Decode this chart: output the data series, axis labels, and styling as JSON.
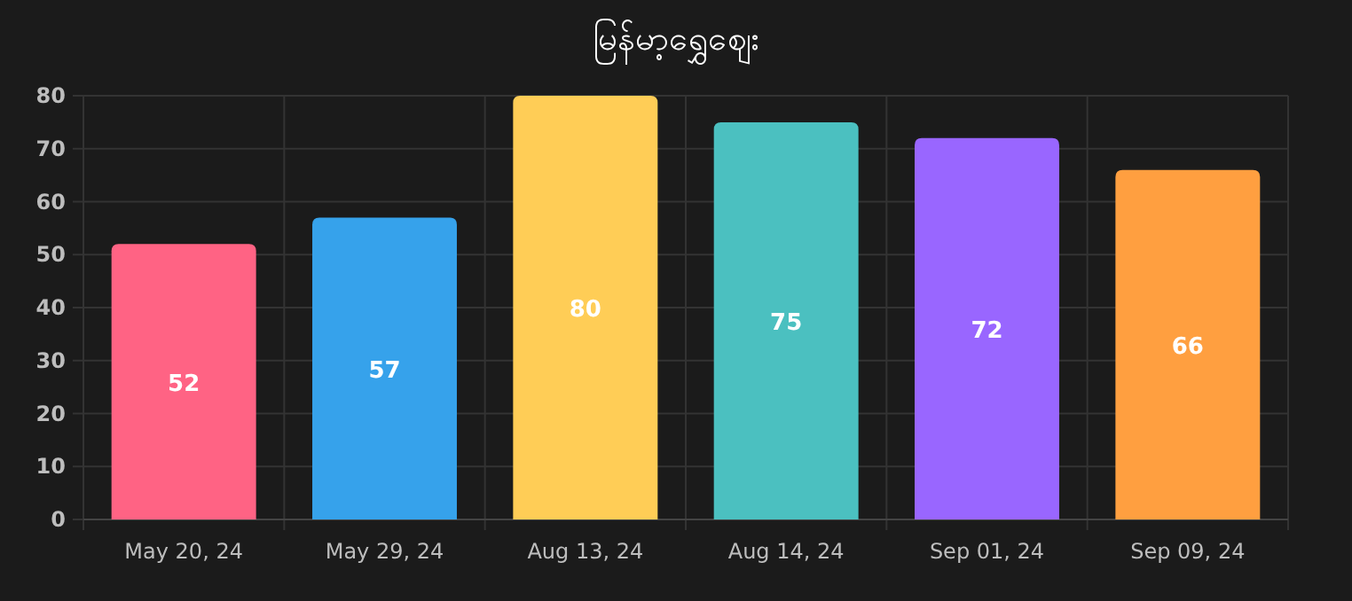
{
  "chart_data": {
    "type": "bar",
    "title": "မြန်မာ့ရွှေဈေး",
    "categories": [
      "May 20, 24",
      "May 29, 24",
      "Aug 13, 24",
      "Aug 14, 24",
      "Sep 01, 24",
      "Sep 09, 24"
    ],
    "values": [
      52,
      57,
      80,
      75,
      72,
      66
    ],
    "colors": [
      "#ff6384",
      "#36a2eb",
      "#ffcd56",
      "#4bc0c0",
      "#9966ff",
      "#ff9f40"
    ],
    "ylim": [
      0,
      80
    ],
    "yticks": [
      0,
      10,
      20,
      30,
      40,
      50,
      60,
      70,
      80
    ],
    "grid": true,
    "data_labels": true
  }
}
